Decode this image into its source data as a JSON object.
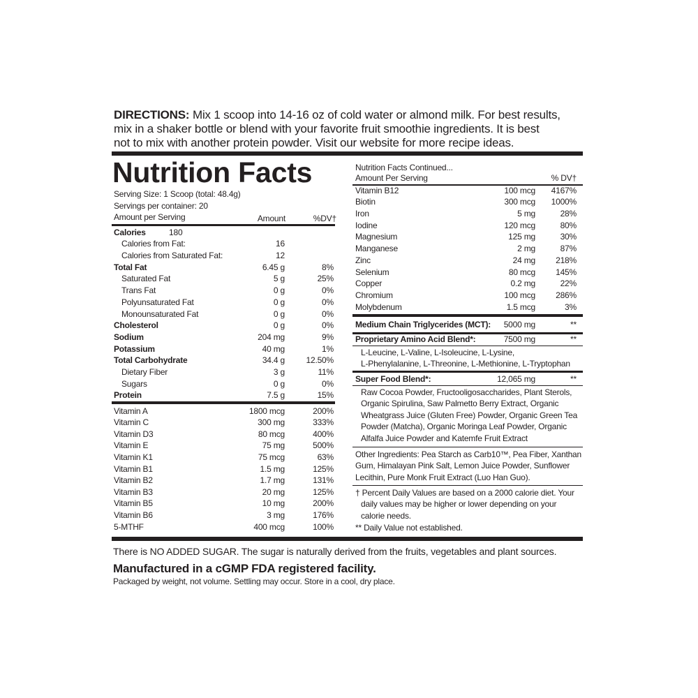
{
  "directions": {
    "label": "DIRECTIONS:",
    "lines": [
      "Mix 1 scoop into 14-16 oz of cold water or almond milk. For best results,",
      "mix in a shaker bottle or blend with your favorite fruit smoothie ingredients. It is best",
      "not to mix with another protein powder. Visit our website for more recipe ideas."
    ]
  },
  "facts": {
    "title": "Nutrition Facts",
    "serving_size": "Serving Size:  1 Scoop (total: 48.4g)",
    "servings": "Servings per container:  20",
    "header": [
      "Amount per Serving",
      "Amount",
      "%DV†"
    ],
    "rows": [
      [
        "Calories",
        "180"
      ],
      [
        "Calories from Fat:",
        "16"
      ],
      [
        "Calories from Saturated Fat:",
        "12"
      ],
      [
        "Total Fat",
        "6.45 g",
        "8%"
      ],
      [
        "Saturated Fat",
        "5 g",
        "25%"
      ],
      [
        "Trans Fat",
        "0 g",
        "0%"
      ],
      [
        "Polyunsaturated Fat",
        "0 g",
        "0%"
      ],
      [
        "Monounsaturated Fat",
        "0 g",
        "0%"
      ],
      [
        "Cholesterol",
        "0 g",
        "0%"
      ],
      [
        "Sodium",
        "204 mg",
        "9%"
      ],
      [
        "Potassium",
        "40 mg",
        "1%"
      ],
      [
        "Total Carbohydrate",
        "34.4 g",
        "12.50%"
      ],
      [
        "Dietary Fiber",
        "3 g",
        "11%"
      ],
      [
        "Sugars",
        "0 g",
        "0%"
      ],
      [
        "Protein",
        "7.5 g",
        "15%"
      ]
    ],
    "vitamins": [
      [
        "Vitamin A",
        "1800 mcg",
        "200%"
      ],
      [
        "Vitamin C",
        "300 mg",
        "333%"
      ],
      [
        "Vitamin D3",
        "80 mcg",
        "400%"
      ],
      [
        "Vitamin E",
        "75 mg",
        "500%"
      ],
      [
        "Vitamin K1",
        "75 mcg",
        "63%"
      ],
      [
        "Vitamin B1",
        "1.5 mg",
        "125%"
      ],
      [
        "Vitamin B2",
        "1.7 mg",
        "131%"
      ],
      [
        "Vitamin B3",
        "20 mg",
        "125%"
      ],
      [
        "Vitamin B5",
        "10 mg",
        "200%"
      ],
      [
        "Vitamin B6",
        "3 mg",
        "176%"
      ],
      [
        "5-MTHF",
        "400 mcg",
        "100%"
      ]
    ]
  },
  "continued": {
    "title": "Nutrition Facts Continued...",
    "header": [
      "Amount Per Serving",
      "% DV†"
    ],
    "rows": [
      [
        "Vitamin B12",
        "100 mcg",
        "4167%"
      ],
      [
        "Biotin",
        "300 mcg",
        "1000%"
      ],
      [
        "Iron",
        "5 mg",
        "28%"
      ],
      [
        "Iodine",
        "120 mcg",
        "80%"
      ],
      [
        "Magnesium",
        "125 mg",
        "30%"
      ],
      [
        "Manganese",
        "2 mg",
        "87%"
      ],
      [
        "Zinc",
        "24 mg",
        "218%"
      ],
      [
        "Selenium",
        "80 mcg",
        "145%"
      ],
      [
        "Copper",
        "0.2 mg",
        "22%"
      ],
      [
        "Chromium",
        "100 mcg",
        "286%"
      ],
      [
        "Molybdenum",
        "1.5 mcg",
        "3%"
      ]
    ],
    "blends": [
      {
        "name": "Medium Chain Triglycerides (MCT):",
        "amount": "5000 mg",
        "dv": "**"
      },
      {
        "name": "Proprietary Amino Acid Blend*:",
        "amount": "7500 mg",
        "dv": "**",
        "lines": [
          "L-Leucine, L-Valine, L-Isoleucine, L-Lysine,",
          "L-Phenylalanine, L-Threonine, L-Methionine, L-Tryptophan"
        ]
      },
      {
        "name": "Super Food Blend*:",
        "amount": "12,065 mg",
        "dv": "**",
        "lines": [
          "Raw Cocoa Powder, Fructooligosaccharides, Plant Sterols,",
          "Organic Spirulina, Saw Palmetto Berry Extract, Organic",
          "Wheatgrass Juice (Gluten Free) Powder, Organic Green Tea",
          "Powder (Matcha), Organic Moringa Leaf Powder, Organic",
          "Alfalfa Juice Powder and Katemfe Fruit Extract"
        ]
      }
    ],
    "other_ingredients": [
      "Other Ingredients: Pea Starch as Carb10™, Pea Fiber, Xanthan",
      "Gum, Himalayan Pink Salt, Lemon Juice Powder, Sunflower",
      "Lecithin, Pure Monk Fruit Extract (Luo Han Guo)."
    ],
    "footnotes": [
      "† Percent Daily Values are based on a 2000 calorie diet. Your",
      "daily values may be higher or lower depending on your",
      "calorie needs.",
      "** Daily Value not established."
    ]
  },
  "footer": {
    "note": "There is NO ADDED SUGAR. The sugar is naturally derived from the fruits, vegetables and plant sources.",
    "facility": "Manufactured in a cGMP FDA registered facility.",
    "packaging": "Packaged by weight, not volume. Settling may occur. Store in a cool, dry place."
  }
}
